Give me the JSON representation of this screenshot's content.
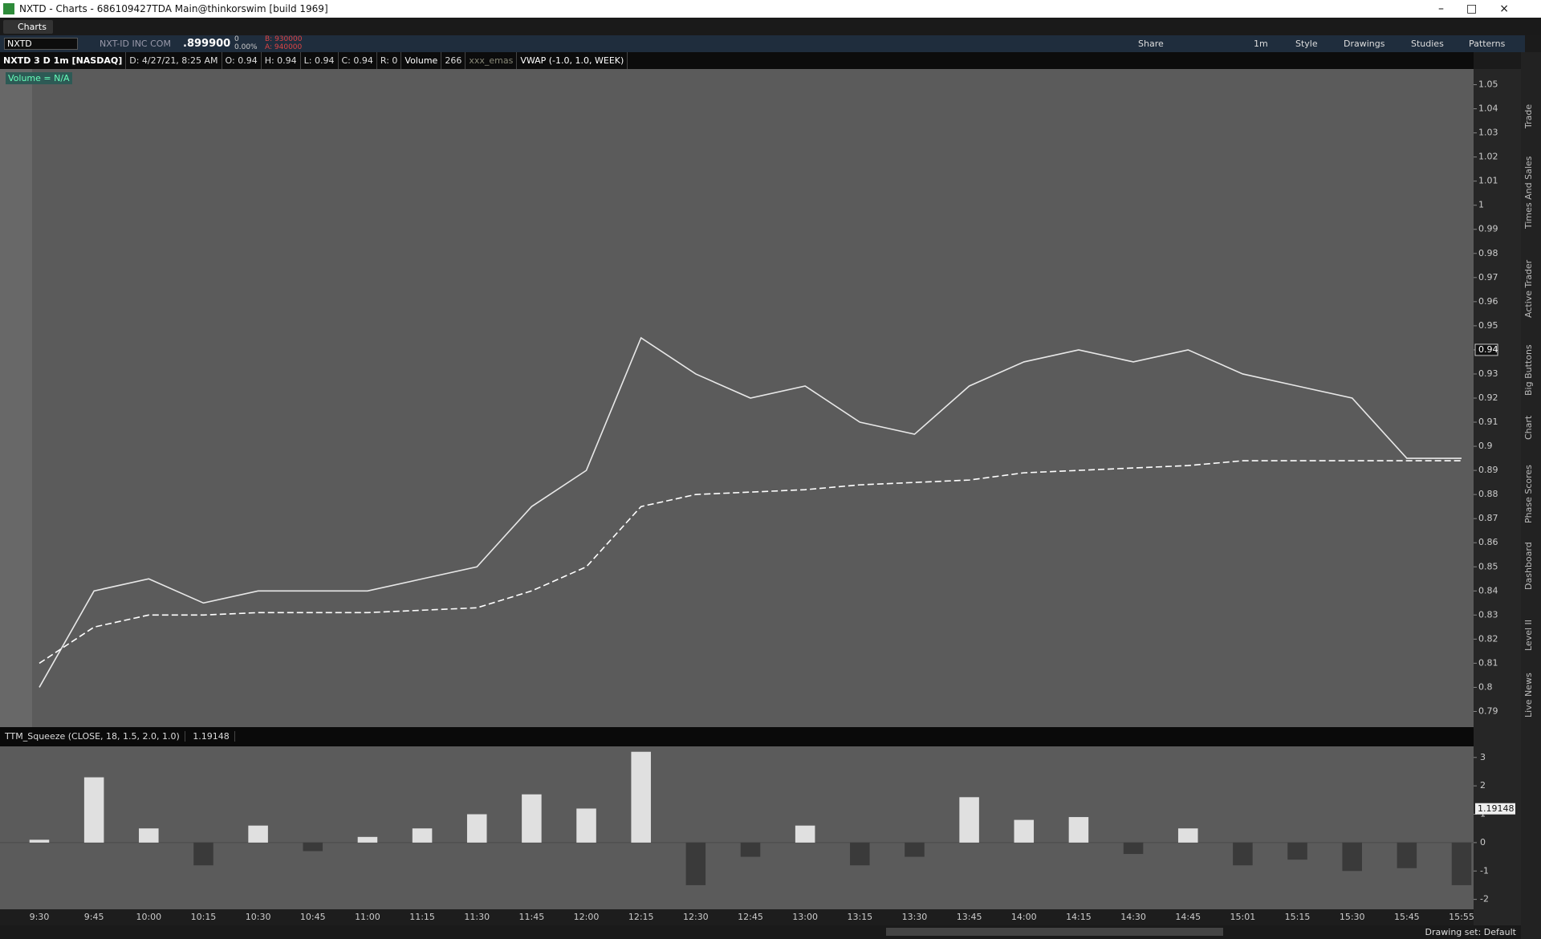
{
  "window": {
    "title": "NXTD - Charts - 686109427TDA Main@thinkorswim [build 1969]",
    "tab": "Charts"
  },
  "toolbar": {
    "symbol": "NXTD",
    "company": "NXT-ID INC COM",
    "last": ".899900",
    "change": "0",
    "change_pct": "0.00%",
    "bid": "B: 930000",
    "ask": "A: 940000",
    "interval": "1m",
    "buttons": [
      "Share",
      "Style",
      "Drawings",
      "Studies",
      "Patterns"
    ]
  },
  "info_bar": [
    "NXTD 3 D 1m [NASDAQ]",
    "D: 4/27/21, 8:25 AM",
    "O: 0.94",
    "H: 0.94",
    "L: 0.94",
    "C: 0.94",
    "R: 0",
    "Volume",
    "266",
    "xxx_emas",
    "VWAP (-1.0, 1.0, WEEK)"
  ],
  "volume_label": "Volume = N/A",
  "side_tabs": [
    "Trade",
    "Times And Sales",
    "Active Trader",
    "Big Buttons",
    "Chart",
    "Phase Scores",
    "Dashboard",
    "Level II",
    "Live News"
  ],
  "status": "Drawing set: Default",
  "chart_data": [
    {
      "type": "line",
      "categories": [
        "9:30",
        "9:45",
        "10:00",
        "10:15",
        "10:30",
        "10:45",
        "11:00",
        "11:15",
        "11:30",
        "11:45",
        "12:00",
        "12:15",
        "12:30",
        "12:45",
        "13:00",
        "13:15",
        "13:30",
        "13:45",
        "14:00",
        "14:15",
        "14:30",
        "14:45",
        "15:01",
        "15:15",
        "15:30",
        "15:45",
        "15:55"
      ],
      "values": [
        0.8,
        0.84,
        0.845,
        0.835,
        0.84,
        0.84,
        0.84,
        0.845,
        0.85,
        0.875,
        0.89,
        0.945,
        0.93,
        0.92,
        0.925,
        0.91,
        0.905,
        0.925,
        0.935,
        0.94,
        0.935,
        0.94,
        0.93,
        0.925,
        0.92,
        0.895,
        0.895
      ],
      "vwap_values": [
        0.81,
        0.825,
        0.83,
        0.83,
        0.831,
        0.831,
        0.831,
        0.832,
        0.833,
        0.84,
        0.85,
        0.875,
        0.88,
        0.881,
        0.882,
        0.884,
        0.885,
        0.886,
        0.889,
        0.89,
        0.891,
        0.892,
        0.894,
        0.894,
        0.894,
        0.894,
        0.894
      ],
      "color": "#e8e8e8",
      "vwap_color": "#ffffff",
      "ylim": [
        0.7835,
        1.0565
      ],
      "yticks": [
        0.79,
        0.8,
        0.81,
        0.82,
        0.83,
        0.84,
        0.85,
        0.86,
        0.87,
        0.88,
        0.89,
        0.9,
        0.91,
        0.92,
        0.93,
        0.94,
        0.95,
        0.96,
        0.97,
        0.98,
        0.99,
        1,
        1.01,
        1.02,
        1.03,
        1.04,
        1.05
      ],
      "last_label": "0.94"
    },
    {
      "type": "bar",
      "title": "TTM_Squeeze (CLOSE, 18, 1.5, 2.0, 1.0)",
      "value_label": "1.19148",
      "values": [
        0.1,
        2.3,
        0.5,
        -0.8,
        0.6,
        -0.3,
        0.2,
        0.5,
        1.0,
        1.7,
        1.2,
        3.2,
        -1.5,
        -0.5,
        0.6,
        -0.8,
        -0.5,
        1.6,
        0.8,
        0.9,
        -0.4,
        0.5,
        -0.8,
        -0.6,
        -1.0,
        -0.9,
        -1.5
      ],
      "color": "#e0e0e0",
      "negative_color": "#3a3a3a",
      "ylim": [
        -2.35,
        3.39
      ],
      "yticks": [
        3,
        2,
        1,
        0,
        -1,
        -2
      ]
    }
  ]
}
